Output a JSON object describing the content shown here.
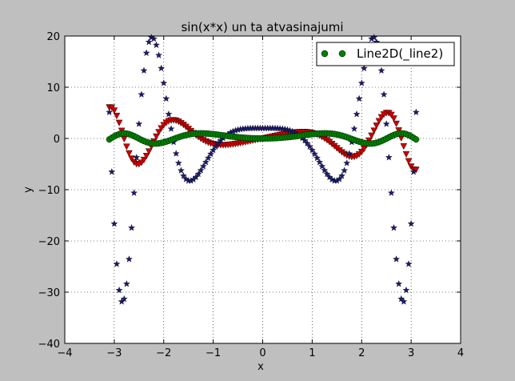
{
  "chart_data": {
    "type": "scatter",
    "title": "sin(x*x) un ta atvasinajumi",
    "xlabel": "x",
    "ylabel": "y",
    "xlim": [
      -4,
      4
    ],
    "ylim": [
      -40,
      20
    ],
    "xticks": [
      -4,
      -3,
      -2,
      -1,
      0,
      1,
      2,
      3,
      4
    ],
    "yticks": [
      -40,
      -30,
      -20,
      -10,
      0,
      10,
      20
    ],
    "xtick_labels": [
      "−4",
      "−3",
      "−2",
      "−1",
      "0",
      "1",
      "2",
      "3",
      "4"
    ],
    "ytick_labels": [
      "−40",
      "−30",
      "−20",
      "−10",
      "0",
      "10",
      "20"
    ],
    "grid": true,
    "legend": {
      "position": "upper-right",
      "entries": [
        "Line2D(_line2)"
      ]
    },
    "x_range": [
      -3.1,
      3.1
    ],
    "x_step": 0.05,
    "series": [
      {
        "name": "Line2D(_line2)",
        "expression": "sin(x*x)",
        "marker": "circle",
        "color": "#007f00"
      },
      {
        "expression": "2*x*cos(x*x)",
        "marker": "triangle-down",
        "color": "#cc0000"
      },
      {
        "expression": "2*cos(x*x) - 4*x*x*sin(x*x)",
        "marker": "star",
        "color": "#1c1c6e"
      }
    ]
  }
}
